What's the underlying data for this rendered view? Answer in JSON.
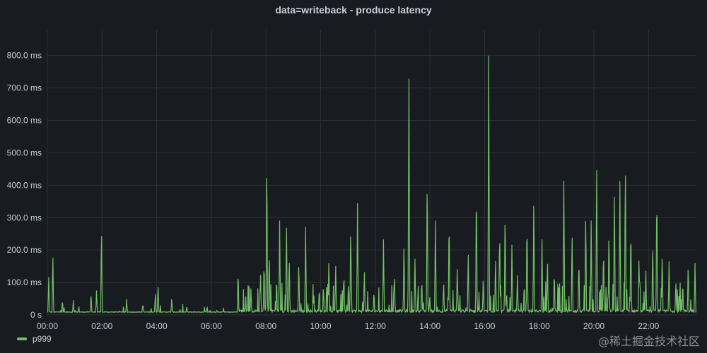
{
  "panel": {
    "title": "data=writeback - produce latency",
    "watermark": "@稀土掘金技术社区"
  },
  "colors": {
    "background": "#181b1f",
    "grid": "#2c3035",
    "series": "#73bf69",
    "text": "#c7d0d9"
  },
  "chart_data": {
    "type": "line",
    "title": "data=writeback - produce latency",
    "xlabel": "",
    "ylabel": "",
    "x_range_hours": [
      0,
      23.75
    ],
    "ylim": [
      0,
      880
    ],
    "y_ticks": [
      0,
      100,
      200,
      300,
      400,
      500,
      600,
      700,
      800
    ],
    "y_tick_labels": [
      "0 s",
      "100.0 ms",
      "200.0 ms",
      "300.0 ms",
      "400.0 ms",
      "500.0 ms",
      "600.0 ms",
      "700.0 ms",
      "800.0 ms"
    ],
    "x_ticks": [
      0,
      2,
      4,
      6,
      8,
      10,
      12,
      14,
      16,
      18,
      20,
      22
    ],
    "x_tick_labels": [
      "00:00",
      "02:00",
      "04:00",
      "06:00",
      "08:00",
      "10:00",
      "12:00",
      "14:00",
      "16:00",
      "18:00",
      "20:00",
      "22:00"
    ],
    "grid": true,
    "legend_position": "bottom-left",
    "series": [
      {
        "name": "p999",
        "unit": "ms",
        "baseline_ms": 8,
        "peaks": [
          {
            "t": 0.05,
            "v": 120
          },
          {
            "t": 0.2,
            "v": 200
          },
          {
            "t": 0.55,
            "v": 50
          },
          {
            "t": 0.95,
            "v": 45
          },
          {
            "t": 1.15,
            "v": 30
          },
          {
            "t": 1.6,
            "v": 70
          },
          {
            "t": 1.8,
            "v": 80
          },
          {
            "t": 1.98,
            "v": 290
          },
          {
            "t": 2.9,
            "v": 50
          },
          {
            "t": 3.5,
            "v": 35
          },
          {
            "t": 3.8,
            "v": 20
          },
          {
            "t": 3.95,
            "v": 70
          },
          {
            "t": 4.05,
            "v": 100
          },
          {
            "t": 4.55,
            "v": 55
          },
          {
            "t": 5.1,
            "v": 30
          },
          {
            "t": 5.75,
            "v": 25
          },
          {
            "t": 6.2,
            "v": 18
          },
          {
            "t": 6.98,
            "v": 150
          },
          {
            "t": 7.45,
            "v": 90
          },
          {
            "t": 7.8,
            "v": 140
          },
          {
            "t": 7.93,
            "v": 180
          },
          {
            "t": 8.03,
            "v": 525
          },
          {
            "t": 8.12,
            "v": 210
          },
          {
            "t": 8.5,
            "v": 300
          },
          {
            "t": 8.75,
            "v": 305
          },
          {
            "t": 8.85,
            "v": 195
          },
          {
            "t": 9.2,
            "v": 180
          },
          {
            "t": 9.45,
            "v": 280
          },
          {
            "t": 9.75,
            "v": 60
          },
          {
            "t": 9.95,
            "v": 90
          },
          {
            "t": 10.1,
            "v": 100
          },
          {
            "t": 10.3,
            "v": 175
          },
          {
            "t": 10.55,
            "v": 160
          },
          {
            "t": 10.85,
            "v": 140
          },
          {
            "t": 11.1,
            "v": 295
          },
          {
            "t": 11.35,
            "v": 355
          },
          {
            "t": 11.6,
            "v": 150
          },
          {
            "t": 11.95,
            "v": 80
          },
          {
            "t": 12.3,
            "v": 240
          },
          {
            "t": 12.7,
            "v": 140
          },
          {
            "t": 13.05,
            "v": 240
          },
          {
            "t": 13.23,
            "v": 785
          },
          {
            "t": 13.45,
            "v": 190
          },
          {
            "t": 13.7,
            "v": 120
          },
          {
            "t": 13.9,
            "v": 470
          },
          {
            "t": 14.2,
            "v": 300
          },
          {
            "t": 14.5,
            "v": 110
          },
          {
            "t": 14.7,
            "v": 330
          },
          {
            "t": 15.0,
            "v": 160
          },
          {
            "t": 15.4,
            "v": 210
          },
          {
            "t": 15.7,
            "v": 435
          },
          {
            "t": 15.95,
            "v": 120
          },
          {
            "t": 16.15,
            "v": 800
          },
          {
            "t": 16.4,
            "v": 195
          },
          {
            "t": 16.55,
            "v": 290
          },
          {
            "t": 16.75,
            "v": 350
          },
          {
            "t": 17.0,
            "v": 230
          },
          {
            "t": 17.2,
            "v": 130
          },
          {
            "t": 17.55,
            "v": 320
          },
          {
            "t": 17.8,
            "v": 395
          },
          {
            "t": 18.1,
            "v": 240
          },
          {
            "t": 18.3,
            "v": 185
          },
          {
            "t": 18.55,
            "v": 150
          },
          {
            "t": 18.9,
            "v": 440
          },
          {
            "t": 19.2,
            "v": 270
          },
          {
            "t": 19.45,
            "v": 190
          },
          {
            "t": 19.7,
            "v": 340
          },
          {
            "t": 19.9,
            "v": 300
          },
          {
            "t": 20.1,
            "v": 490
          },
          {
            "t": 20.35,
            "v": 220
          },
          {
            "t": 20.55,
            "v": 290
          },
          {
            "t": 20.75,
            "v": 400
          },
          {
            "t": 20.95,
            "v": 425
          },
          {
            "t": 21.15,
            "v": 505
          },
          {
            "t": 21.35,
            "v": 300
          },
          {
            "t": 21.65,
            "v": 190
          },
          {
            "t": 21.9,
            "v": 140
          },
          {
            "t": 22.15,
            "v": 240
          },
          {
            "t": 22.3,
            "v": 420
          },
          {
            "t": 22.5,
            "v": 210
          },
          {
            "t": 22.75,
            "v": 170
          },
          {
            "t": 23.0,
            "v": 110
          },
          {
            "t": 23.25,
            "v": 110
          },
          {
            "t": 23.45,
            "v": 170
          },
          {
            "t": 23.7,
            "v": 165
          }
        ]
      }
    ]
  }
}
